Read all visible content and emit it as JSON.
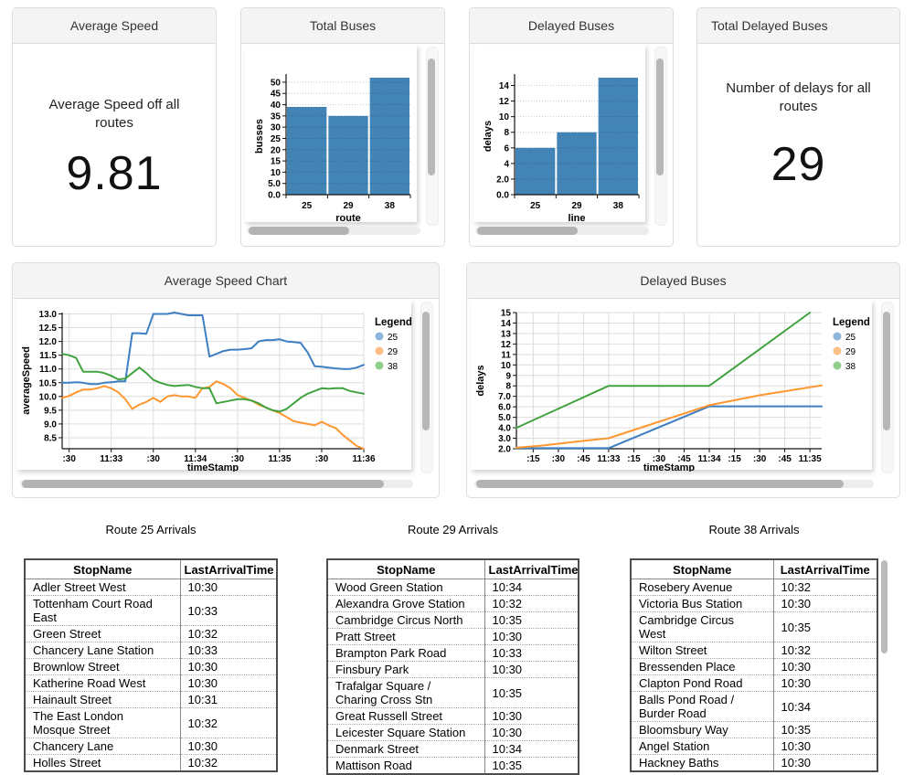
{
  "panels": {
    "average_speed": {
      "title": "Average Speed",
      "description": "Average Speed off all routes",
      "value": "9.81"
    },
    "total_buses": {
      "title": "Total Buses"
    },
    "delayed_buses": {
      "title": "Delayed Buses"
    },
    "total_delayed_buses": {
      "title": "Total Delayed Buses",
      "description": "Number of delays for all routes",
      "value": "29"
    },
    "average_speed_chart": {
      "title": "Average Speed Chart"
    },
    "delayed_buses_chart": {
      "title": "Delayed Buses"
    }
  },
  "colors": {
    "bar_fill": "#4284b5",
    "route_25": "#3f7fc1",
    "route_29": "#ff962f",
    "route_38": "#41a33f",
    "legend_25": "#8cb4dd",
    "legend_29": "#fdbe85",
    "legend_38": "#8ecf8b"
  },
  "chart_data": [
    {
      "key": "total_buses",
      "type": "bar",
      "title": "Total Buses",
      "categories": [
        "25",
        "29",
        "38"
      ],
      "values": [
        39,
        35,
        52
      ],
      "xlabel": "route",
      "ylabel": "busses",
      "ylim": [
        0,
        52
      ],
      "y_ticks": [
        {
          "v": 0,
          "label": "0.0"
        },
        {
          "v": 5,
          "label": "5.0"
        },
        {
          "v": 10,
          "label": "10"
        },
        {
          "v": 15,
          "label": "15"
        },
        {
          "v": 20,
          "label": "20"
        },
        {
          "v": 25,
          "label": "25"
        },
        {
          "v": 30,
          "label": "30"
        },
        {
          "v": 35,
          "label": "35"
        },
        {
          "v": 40,
          "label": "40"
        },
        {
          "v": 45,
          "label": "45"
        },
        {
          "v": 50,
          "label": "50"
        }
      ],
      "bar_color": "#4284b5"
    },
    {
      "key": "delayed_buses",
      "type": "bar",
      "title": "Delayed Buses",
      "categories": [
        "25",
        "29",
        "38"
      ],
      "values": [
        6,
        8,
        15
      ],
      "xlabel": "line",
      "ylabel": "delays",
      "ylim": [
        0,
        15
      ],
      "y_ticks": [
        {
          "v": 0,
          "label": "0.0"
        },
        {
          "v": 2,
          "label": "2.0"
        },
        {
          "v": 4,
          "label": "4"
        },
        {
          "v": 6,
          "label": "6"
        },
        {
          "v": 8,
          "label": "8"
        },
        {
          "v": 10,
          "label": "10"
        },
        {
          "v": 12,
          "label": "12"
        },
        {
          "v": 14,
          "label": "14"
        }
      ],
      "bar_color": "#4284b5"
    },
    {
      "key": "average_speed_chart",
      "type": "line",
      "title": "Average Speed Chart",
      "xlabel": "timeStamp",
      "ylabel": "averageSpeed",
      "legend_title": "Legend",
      "xlim": [
        25,
        240
      ],
      "ylim": [
        8.1,
        13.05
      ],
      "x_ticks": [
        {
          "v": 30,
          "label": ":30"
        },
        {
          "v": 60,
          "label": "11:33"
        },
        {
          "v": 90,
          "label": ":30"
        },
        {
          "v": 120,
          "label": "11:34"
        },
        {
          "v": 150,
          "label": ":30"
        },
        {
          "v": 180,
          "label": "11:35"
        },
        {
          "v": 210,
          "label": ":30"
        },
        {
          "v": 240,
          "label": "11:36"
        }
      ],
      "y_ticks": [
        {
          "v": 8.5,
          "label": "8.5"
        },
        {
          "v": 9,
          "label": "9.0"
        },
        {
          "v": 9.5,
          "label": "9.5"
        },
        {
          "v": 10,
          "label": "10.0"
        },
        {
          "v": 10.5,
          "label": "10.5"
        },
        {
          "v": 11,
          "label": "11.0"
        },
        {
          "v": 11.5,
          "label": "11.5"
        },
        {
          "v": 12,
          "label": "12.0"
        },
        {
          "v": 12.5,
          "label": "12.5"
        },
        {
          "v": 13,
          "label": "13.0"
        }
      ],
      "series": [
        {
          "name": "25",
          "color": "#3f7fc1",
          "legend_color": "#8cb4dd",
          "x_start": 25,
          "x_step": 5,
          "values": [
            10.5,
            10.5,
            10.52,
            10.5,
            10.45,
            10.45,
            10.5,
            10.52,
            10.55,
            10.55,
            12.3,
            12.3,
            12.28,
            13.0,
            13.0,
            13.0,
            13.05,
            13.0,
            12.95,
            12.95,
            12.95,
            11.45,
            11.55,
            11.65,
            11.7,
            11.7,
            11.72,
            11.75,
            12.0,
            12.05,
            12.05,
            12.08,
            12.0,
            11.98,
            11.95,
            11.6,
            11.1,
            11.08,
            11.05,
            11.02,
            11.0,
            11.0,
            11.05,
            11.15
          ]
        },
        {
          "name": "29",
          "color": "#ff962f",
          "legend_color": "#fdbe85",
          "x_start": 25,
          "x_step": 5,
          "values": [
            9.95,
            10.02,
            10.15,
            10.25,
            10.25,
            10.3,
            10.38,
            10.3,
            10.15,
            9.9,
            9.55,
            9.7,
            9.8,
            9.95,
            9.8,
            10.0,
            10.05,
            10.0,
            10.0,
            9.95,
            10.3,
            10.35,
            10.55,
            10.45,
            10.3,
            10.05,
            9.95,
            9.85,
            9.7,
            9.6,
            9.5,
            9.4,
            9.25,
            9.1,
            9.05,
            9.0,
            8.95,
            9.08,
            8.95,
            8.85,
            8.6,
            8.4,
            8.2,
            8.1
          ]
        },
        {
          "name": "38",
          "color": "#41a33f",
          "legend_color": "#8ecf8b",
          "x_start": 25,
          "x_step": 5,
          "values": [
            11.55,
            11.5,
            11.4,
            10.9,
            10.9,
            10.9,
            10.85,
            10.75,
            10.62,
            10.65,
            10.85,
            11.05,
            10.85,
            10.6,
            10.5,
            10.42,
            10.38,
            10.4,
            10.42,
            10.35,
            10.3,
            10.3,
            9.75,
            9.8,
            9.85,
            9.9,
            9.9,
            9.85,
            9.75,
            9.6,
            9.5,
            9.45,
            9.55,
            9.75,
            9.95,
            10.1,
            10.2,
            10.3,
            10.28,
            10.3,
            10.3,
            10.2,
            10.15,
            10.1
          ]
        }
      ]
    },
    {
      "key": "delayed_buses_chart",
      "type": "line",
      "title": "Delayed Buses",
      "xlabel": "timeStamp",
      "ylabel": "delays",
      "legend_title": "Legend",
      "xlim": [
        5,
        187
      ],
      "ylim": [
        2,
        15
      ],
      "x_ticks": [
        {
          "v": 15,
          "label": ":15"
        },
        {
          "v": 30,
          "label": ":30"
        },
        {
          "v": 45,
          "label": ":45"
        },
        {
          "v": 60,
          "label": "11:33"
        },
        {
          "v": 75,
          "label": ":15"
        },
        {
          "v": 90,
          "label": ":30"
        },
        {
          "v": 105,
          "label": ":45"
        },
        {
          "v": 120,
          "label": "11:34"
        },
        {
          "v": 135,
          "label": ":15"
        },
        {
          "v": 150,
          "label": ":30"
        },
        {
          "v": 165,
          "label": ":45"
        },
        {
          "v": 180,
          "label": "11:35"
        }
      ],
      "y_ticks": [
        {
          "v": 2,
          "label": "2.0"
        },
        {
          "v": 3,
          "label": "3.0"
        },
        {
          "v": 4,
          "label": "4.0"
        },
        {
          "v": 5,
          "label": "5.0"
        },
        {
          "v": 6,
          "label": "6.0"
        },
        {
          "v": 7,
          "label": "7.0"
        },
        {
          "v": 8,
          "label": "8"
        },
        {
          "v": 9,
          "label": "9"
        },
        {
          "v": 10,
          "label": "10"
        },
        {
          "v": 11,
          "label": "11"
        },
        {
          "v": 12,
          "label": "12"
        },
        {
          "v": 13,
          "label": "13"
        },
        {
          "v": 14,
          "label": "14"
        },
        {
          "v": 15,
          "label": "15"
        }
      ],
      "series": [
        {
          "name": "25",
          "color": "#3f7fc1",
          "legend_color": "#8cb4dd",
          "points": [
            [
              5,
              2.05
            ],
            [
              60,
              2.05
            ],
            [
              120,
              6.05
            ],
            [
              187,
              6.05
            ]
          ]
        },
        {
          "name": "29",
          "color": "#ff962f",
          "legend_color": "#fdbe85",
          "points": [
            [
              5,
              2.1
            ],
            [
              20,
              2.3
            ],
            [
              45,
              2.75
            ],
            [
              60,
              3.0
            ],
            [
              120,
              6.15
            ],
            [
              150,
              7.1
            ],
            [
              187,
              8.05
            ]
          ]
        },
        {
          "name": "38",
          "color": "#41a33f",
          "legend_color": "#8ecf8b",
          "points": [
            [
              5,
              4.0
            ],
            [
              60,
              8.0
            ],
            [
              120,
              8.0
            ],
            [
              180,
              15.0
            ]
          ]
        }
      ]
    }
  ],
  "tables": [
    {
      "title": "Route 25 Arrivals",
      "headers": [
        "StopName",
        "LastArrivalTime"
      ],
      "rows": [
        [
          "Adler Street West",
          "10:30"
        ],
        [
          "Tottenham Court Road East",
          "10:33"
        ],
        [
          "Green Street",
          "10:32"
        ],
        [
          "Chancery Lane Station",
          "10:33"
        ],
        [
          "Brownlow Street",
          "10:30"
        ],
        [
          "Katherine Road West",
          "10:30"
        ],
        [
          "Hainault Street",
          "10:31"
        ],
        [
          "The East London Mosque Street",
          "10:32"
        ],
        [
          "Chancery Lane",
          "10:30"
        ],
        [
          "Holles Street",
          "10:32"
        ]
      ]
    },
    {
      "title": "Route 29 Arrivals",
      "headers": [
        "StopName",
        "LastArrivalTime"
      ],
      "rows": [
        [
          "Wood Green Station",
          "10:34"
        ],
        [
          "Alexandra Grove Station",
          "10:32"
        ],
        [
          "Cambridge Circus North",
          "10:35"
        ],
        [
          "Pratt Street",
          "10:30"
        ],
        [
          "Brampton Park Road",
          "10:33"
        ],
        [
          "Finsbury Park",
          "10:30"
        ],
        [
          "Trafalgar Square / Charing Cross Stn",
          "10:35"
        ],
        [
          "Great Russell Street",
          "10:30"
        ],
        [
          "Leicester Square Station",
          "10:30"
        ],
        [
          "Denmark Street",
          "10:34"
        ],
        [
          "Mattison Road",
          "10:35"
        ]
      ]
    },
    {
      "title": "Route 38 Arrivals",
      "headers": [
        "StopName",
        "LastArrivalTime"
      ],
      "rows": [
        [
          "Rosebery Avenue",
          "10:32"
        ],
        [
          "Victoria Bus Station",
          "10:30"
        ],
        [
          "Cambridge Circus West",
          "10:35"
        ],
        [
          "Wilton Street",
          "10:32"
        ],
        [
          "Bressenden Place",
          "10:30"
        ],
        [
          "Clapton Pond Road",
          "10:30"
        ],
        [
          "Balls Pond Road / Burder Road",
          "10:34"
        ],
        [
          "Bloomsbury Way",
          "10:35"
        ],
        [
          "Angel Station",
          "10:30"
        ],
        [
          "Hackney Baths",
          "10:30"
        ]
      ]
    }
  ]
}
